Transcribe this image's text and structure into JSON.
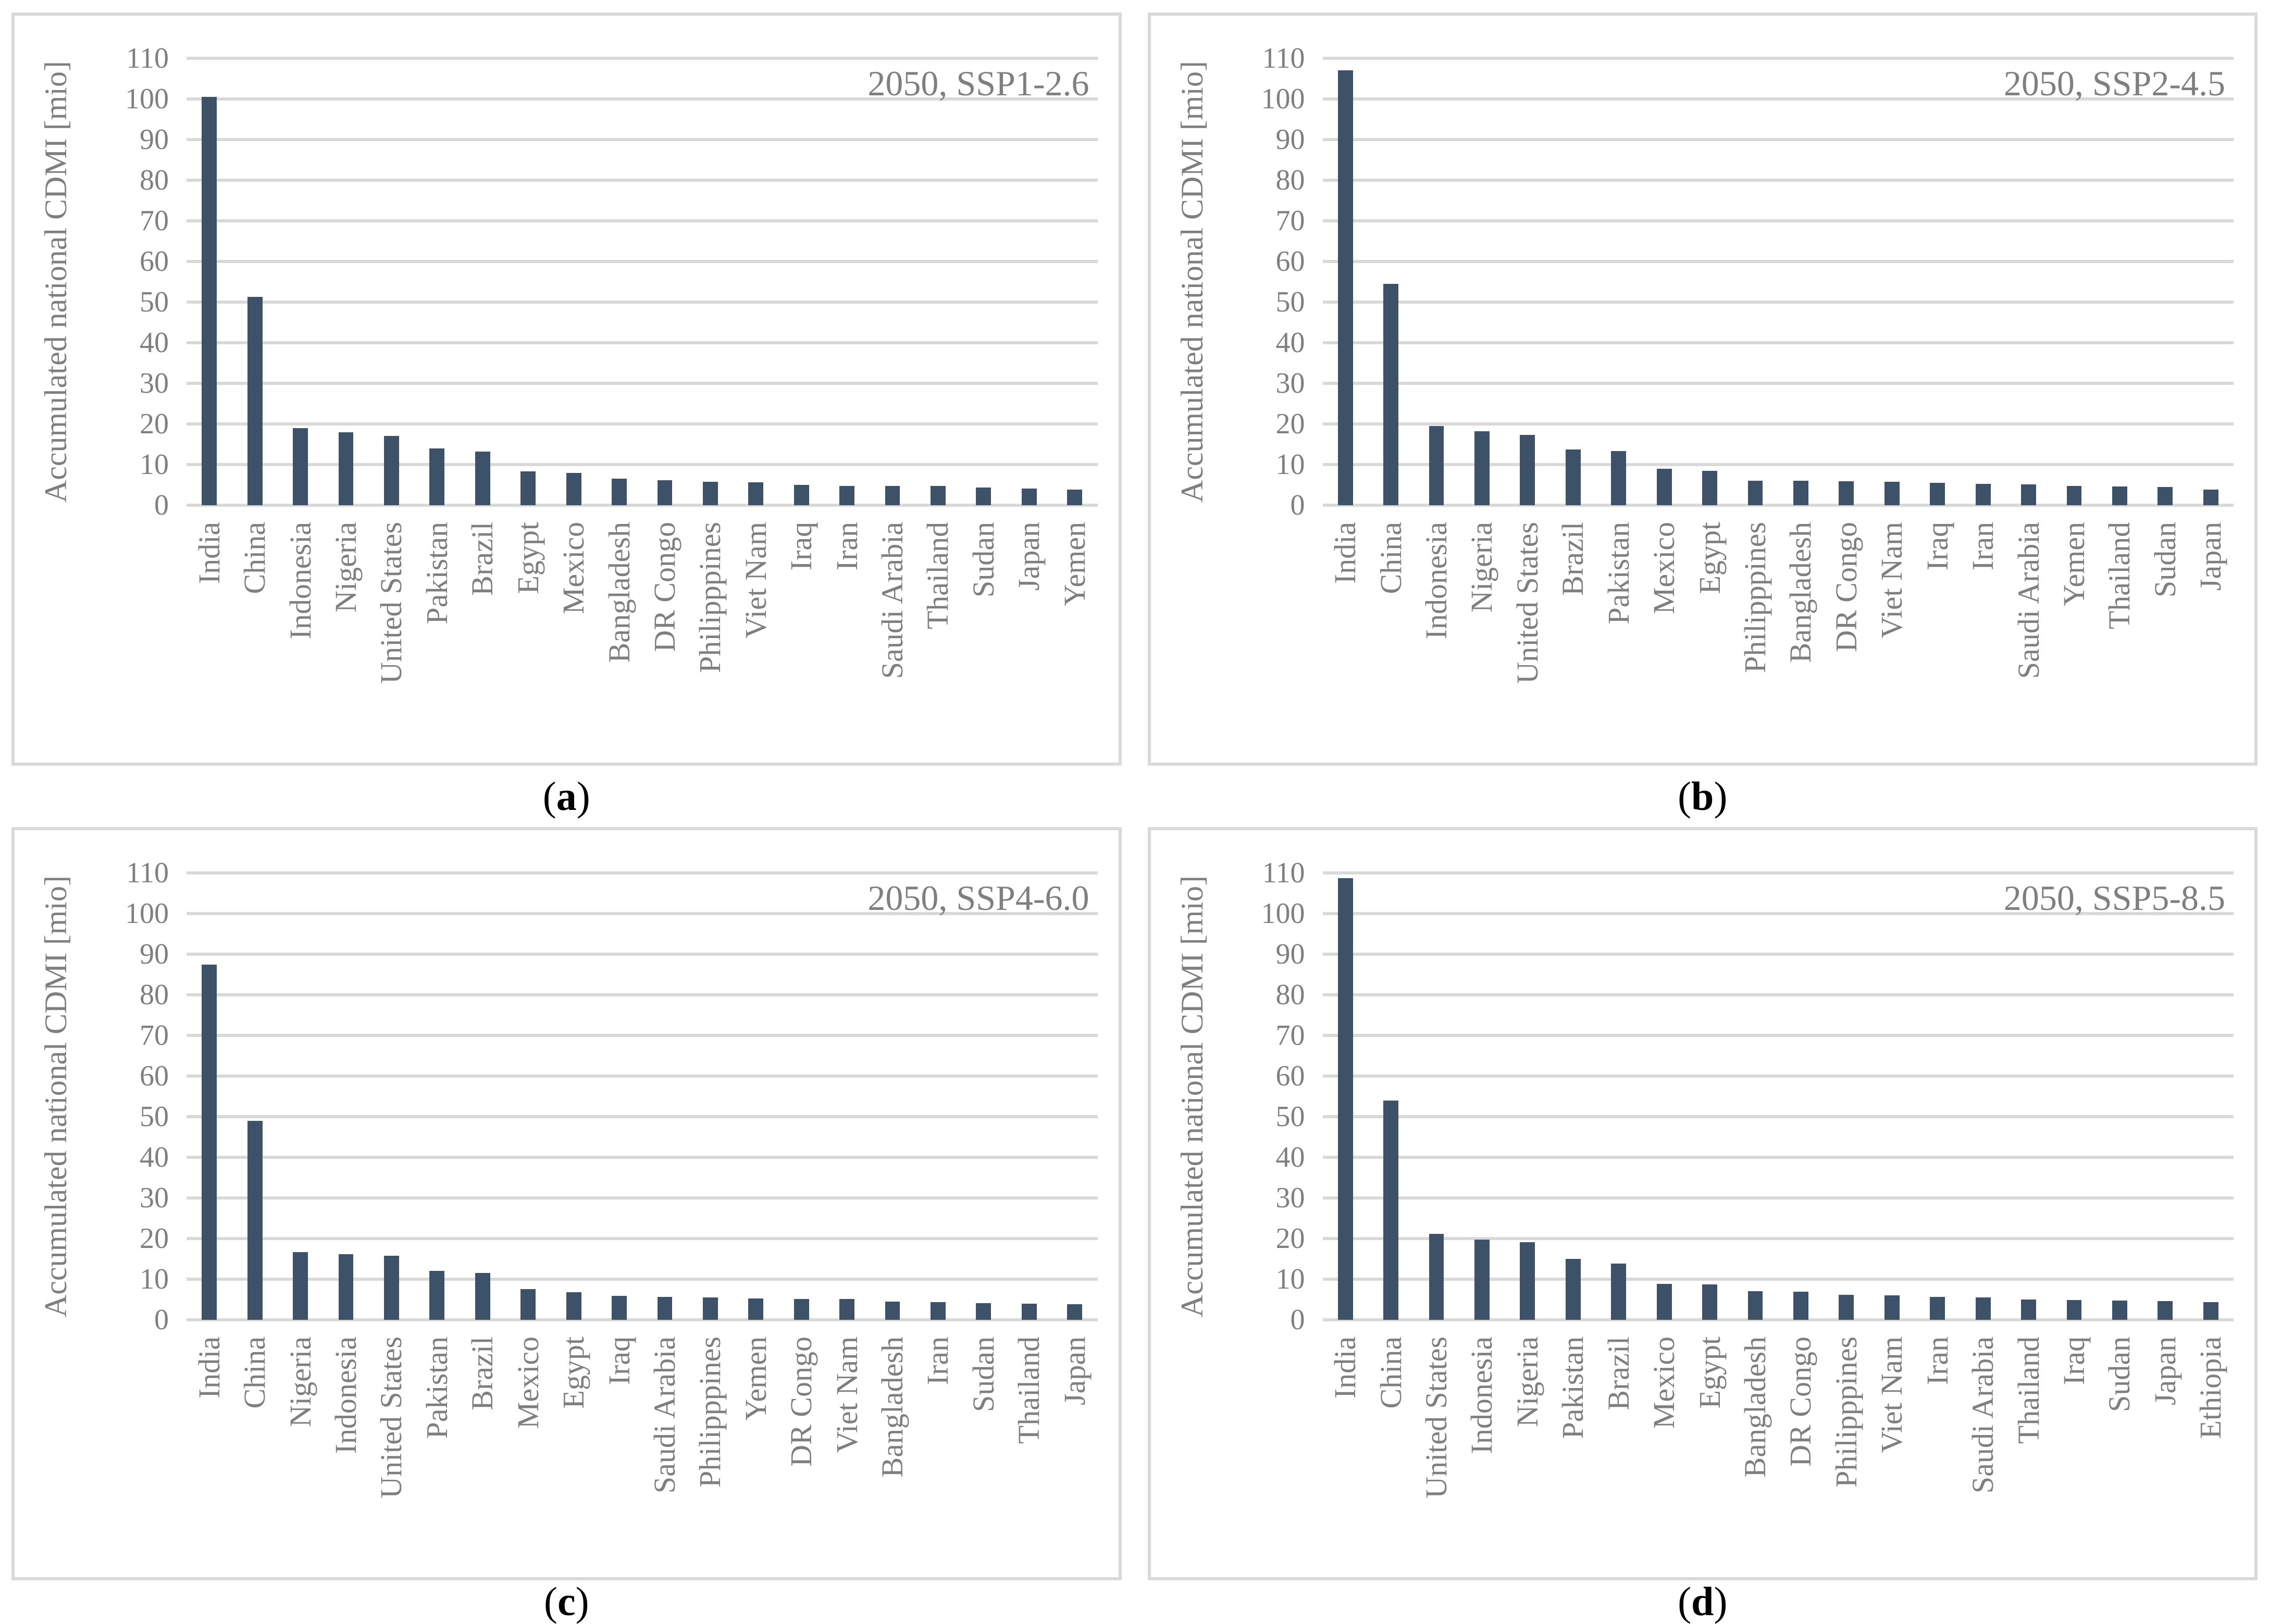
{
  "colors": {
    "bar": "#3d5169",
    "gridline": "#d9d9d9",
    "axis_text": "#7f7f7f",
    "title_text": "#7f7f7f",
    "panel_border": "#d9d9d9",
    "caption_text": "#000000"
  },
  "captions": [
    {
      "open": "(",
      "letter": "a",
      "close": ")"
    },
    {
      "open": "(",
      "letter": "b",
      "close": ")"
    },
    {
      "open": "(",
      "letter": "c",
      "close": ")"
    },
    {
      "open": "(",
      "letter": "d",
      "close": ")"
    }
  ],
  "chart_data": [
    {
      "type": "bar",
      "panel": "a",
      "title": "2050, SSP1-2.6",
      "ylabel": "Accumulated national CDMI [mio]",
      "ylim": [
        0,
        110
      ],
      "yticks": [
        0,
        10,
        20,
        30,
        40,
        50,
        60,
        70,
        80,
        90,
        100,
        110
      ],
      "grid": true,
      "legend": "none",
      "categories": [
        "India",
        "China",
        "Indonesia",
        "Nigeria",
        "United States",
        "Pakistan",
        "Brazil",
        "Egypt",
        "Mexico",
        "Bangladesh",
        "DR Congo",
        "Philipppines",
        "Viet Nam",
        "Iraq",
        "Iran",
        "Saudi Arabia",
        "Thailand",
        "Sudan",
        "Japan",
        "Yemen"
      ],
      "values": [
        100.5,
        51.3,
        19.0,
        18.0,
        17.0,
        14.0,
        13.2,
        8.3,
        8.0,
        6.6,
        6.2,
        5.8,
        5.6,
        5.0,
        4.8,
        4.8,
        4.7,
        4.4,
        4.1,
        3.9
      ]
    },
    {
      "type": "bar",
      "panel": "b",
      "title": "2050, SSP2-4.5",
      "ylabel": "Accumulated national CDMI [mio]",
      "ylim": [
        0,
        110
      ],
      "yticks": [
        0,
        10,
        20,
        30,
        40,
        50,
        60,
        70,
        80,
        90,
        100,
        110
      ],
      "grid": true,
      "legend": "none",
      "categories": [
        "India",
        "China",
        "Indonesia",
        "Nigeria",
        "United States",
        "Brazil",
        "Pakistan",
        "Mexico",
        "Egypt",
        "Philipppines",
        "Bangladesh",
        "DR Congo",
        "Viet Nam",
        "Iraq",
        "Iran",
        "Saudi Arabia",
        "Yemen",
        "Thailand",
        "Sudan",
        "Japan"
      ],
      "values": [
        107.0,
        54.5,
        19.5,
        18.2,
        17.3,
        13.7,
        13.3,
        9.0,
        8.5,
        6.0,
        6.0,
        5.9,
        5.8,
        5.5,
        5.2,
        5.1,
        4.7,
        4.6,
        4.5,
        3.9
      ]
    },
    {
      "type": "bar",
      "panel": "c",
      "title": "2050, SSP4-6.0",
      "ylabel": "Accumulated national CDMI [mio]",
      "ylim": [
        0,
        110
      ],
      "yticks": [
        0,
        10,
        20,
        30,
        40,
        50,
        60,
        70,
        80,
        90,
        100,
        110
      ],
      "grid": true,
      "legend": "none",
      "categories": [
        "India",
        "China",
        "Nigeria",
        "Indonesia",
        "United States",
        "Pakistan",
        "Brazil",
        "Mexico",
        "Egypt",
        "Iraq",
        "Saudi Arabia",
        "Philipppines",
        "Yemen",
        "DR Congo",
        "Viet Nam",
        "Bangladesh",
        "Iran",
        "Sudan",
        "Thailand",
        "Japan"
      ],
      "values": [
        87.5,
        49.0,
        16.7,
        16.2,
        15.8,
        12.0,
        11.6,
        7.6,
        6.8,
        5.9,
        5.7,
        5.5,
        5.3,
        5.1,
        5.1,
        4.5,
        4.3,
        4.1,
        4.0,
        3.9
      ]
    },
    {
      "type": "bar",
      "panel": "d",
      "title": "2050, SSP5-8.5",
      "ylabel": "Accumulated national CDMI [mio]",
      "ylim": [
        0,
        110
      ],
      "yticks": [
        0,
        10,
        20,
        30,
        40,
        50,
        60,
        70,
        80,
        90,
        100,
        110
      ],
      "grid": true,
      "legend": "none",
      "categories": [
        "India",
        "China",
        "United States",
        "Indonesia",
        "Nigeria",
        "Pakistan",
        "Brazil",
        "Mexico",
        "Egypt",
        "Bangladesh",
        "DR Congo",
        "Philipppines",
        "Viet Nam",
        "Iran",
        "Saudi Arabia",
        "Thailand",
        "Iraq",
        "Sudan",
        "Japan",
        "Ethiopia"
      ],
      "values": [
        108.7,
        54.0,
        21.1,
        19.8,
        19.1,
        15.0,
        13.9,
        8.8,
        8.7,
        7.1,
        6.9,
        6.2,
        6.0,
        5.7,
        5.5,
        5.0,
        4.9,
        4.8,
        4.6,
        4.3
      ]
    }
  ]
}
